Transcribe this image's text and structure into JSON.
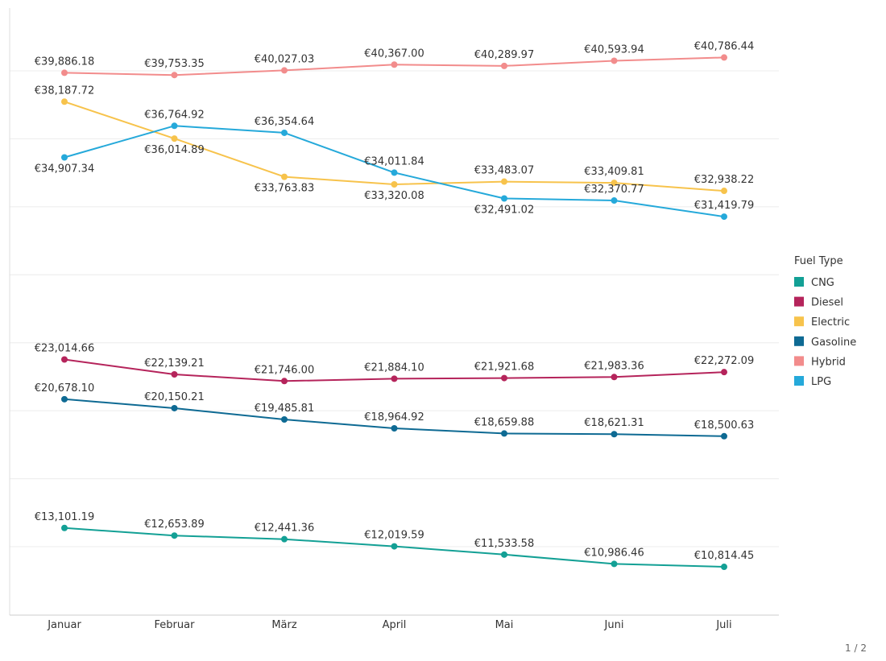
{
  "chart_data": {
    "type": "line",
    "title": "",
    "xlabel": "",
    "ylabel": "",
    "categories": [
      "Januar",
      "Februar",
      "März",
      "April",
      "Mai",
      "Juni",
      "Juli"
    ],
    "series": [
      {
        "name": "Hybrid",
        "color": "#F28C8C",
        "values": [
          39886.18,
          39753.35,
          40027.03,
          40367.0,
          40289.97,
          40593.94,
          40786.44
        ],
        "labels": [
          "€39,886.18",
          "€39,753.35",
          "€40,027.03",
          "€40,367.00",
          "€40,289.97",
          "€40,593.94",
          "€40,786.44"
        ],
        "label_pos": [
          "above",
          "above",
          "above",
          "above",
          "above",
          "above",
          "above"
        ]
      },
      {
        "name": "Electric",
        "color": "#F7C34C",
        "values": [
          38187.72,
          36014.89,
          33763.83,
          33320.08,
          33483.07,
          33409.81,
          32938.22
        ],
        "labels": [
          "€38,187.72",
          "€36,014.89",
          "€33,763.83",
          "€33,320.08",
          "€33,483.07",
          "€33,409.81",
          "€32,938.22"
        ],
        "label_pos": [
          "above",
          "below",
          "below",
          "below",
          "above",
          "above",
          "above"
        ]
      },
      {
        "name": "LPG",
        "color": "#25A9DA",
        "values": [
          34907.34,
          36764.92,
          36354.64,
          34011.84,
          32491.02,
          32370.77,
          31419.79
        ],
        "labels": [
          "€34,907.34",
          "€36,764.92",
          "€36,354.64",
          "€34,011.84",
          "€32,491.02",
          "€32,370.77",
          "€31,419.79"
        ],
        "label_pos": [
          "below",
          "above",
          "above",
          "above",
          "below",
          "above",
          "above"
        ]
      },
      {
        "name": "Diesel",
        "color": "#B5245B",
        "values": [
          23014.66,
          22139.21,
          21746.0,
          21884.1,
          21921.68,
          21983.36,
          22272.09
        ],
        "labels": [
          "€23,014.66",
          "€22,139.21",
          "€21,746.00",
          "€21,884.10",
          "€21,921.68",
          "€21,983.36",
          "€22,272.09"
        ],
        "label_pos": [
          "above",
          "above",
          "above",
          "above",
          "above",
          "above",
          "above"
        ]
      },
      {
        "name": "Gasoline",
        "color": "#0E6A93",
        "values": [
          20678.1,
          20150.21,
          19485.81,
          18964.92,
          18659.88,
          18621.31,
          18500.63
        ],
        "labels": [
          "€20,678.10",
          "€20,150.21",
          "€19,485.81",
          "€18,964.92",
          "€18,659.88",
          "€18,621.31",
          "€18,500.63"
        ],
        "label_pos": [
          "above",
          "above",
          "above",
          "above",
          "above",
          "above",
          "above"
        ]
      },
      {
        "name": "CNG",
        "color": "#13A095",
        "values": [
          13101.19,
          12653.89,
          12441.36,
          12019.59,
          11533.58,
          10986.46,
          10814.45
        ],
        "labels": [
          "€13,101.19",
          "€12,653.89",
          "€12,441.36",
          "€12,019.59",
          "€11,533.58",
          "€10,986.46",
          "€10,814.45"
        ],
        "label_pos": [
          "above",
          "above",
          "above",
          "above",
          "above",
          "above",
          "above"
        ]
      }
    ],
    "ylim": [
      6000,
      42000
    ],
    "gridlines": [
      12000,
      16000,
      20000,
      24000,
      28000,
      32000,
      36000,
      40000
    ],
    "grid": true,
    "legend": {
      "title": "Fuel Type",
      "placement": "right",
      "entries": [
        "CNG",
        "Diesel",
        "Electric",
        "Gasoline",
        "Hybrid",
        "LPG"
      ]
    }
  },
  "pagination": {
    "label": "1 / 2"
  }
}
